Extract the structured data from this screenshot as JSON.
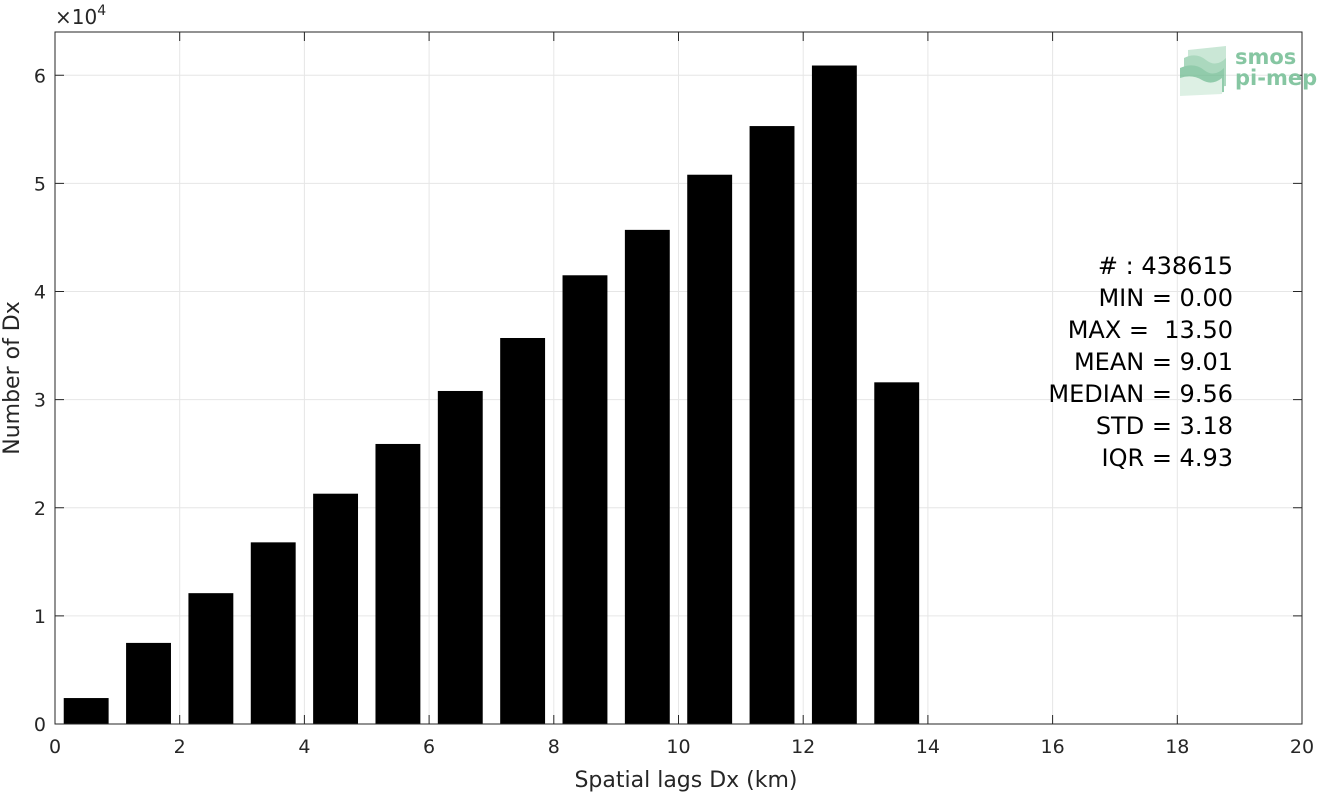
{
  "chart_data": {
    "type": "bar",
    "x": [
      0.5,
      1.5,
      2.5,
      3.5,
      4.5,
      5.5,
      6.5,
      7.5,
      8.5,
      9.5,
      10.5,
      11.5,
      12.5,
      13.5
    ],
    "values": [
      2400,
      7500,
      12100,
      16800,
      21300,
      25900,
      30800,
      35700,
      41500,
      45700,
      50800,
      55300,
      60900,
      31600
    ],
    "bar_width": 0.72,
    "color": "#000000",
    "xlim": [
      0,
      20
    ],
    "ylim": [
      0,
      64000
    ],
    "xticks": [
      0,
      2,
      4,
      6,
      8,
      10,
      12,
      14,
      16,
      18,
      20
    ],
    "yticks": [
      0,
      1,
      2,
      3,
      4,
      5,
      6
    ],
    "ytick_scale": 10000,
    "exponent_label": "×10",
    "exponent_power": "4",
    "xlabel": "Spatial lags Dx (km)",
    "ylabel": "Number of Dx",
    "grid": true,
    "stats": [
      "# : 438615",
      "MIN = 0.00",
      "MAX =  13.50",
      "MEAN = 9.01",
      "MEDIAN = 9.56",
      "STD = 3.18",
      "IQR = 4.93"
    ],
    "watermark": {
      "line1": "smos",
      "line2": "pi-mep",
      "color": "#86c6a2"
    }
  }
}
